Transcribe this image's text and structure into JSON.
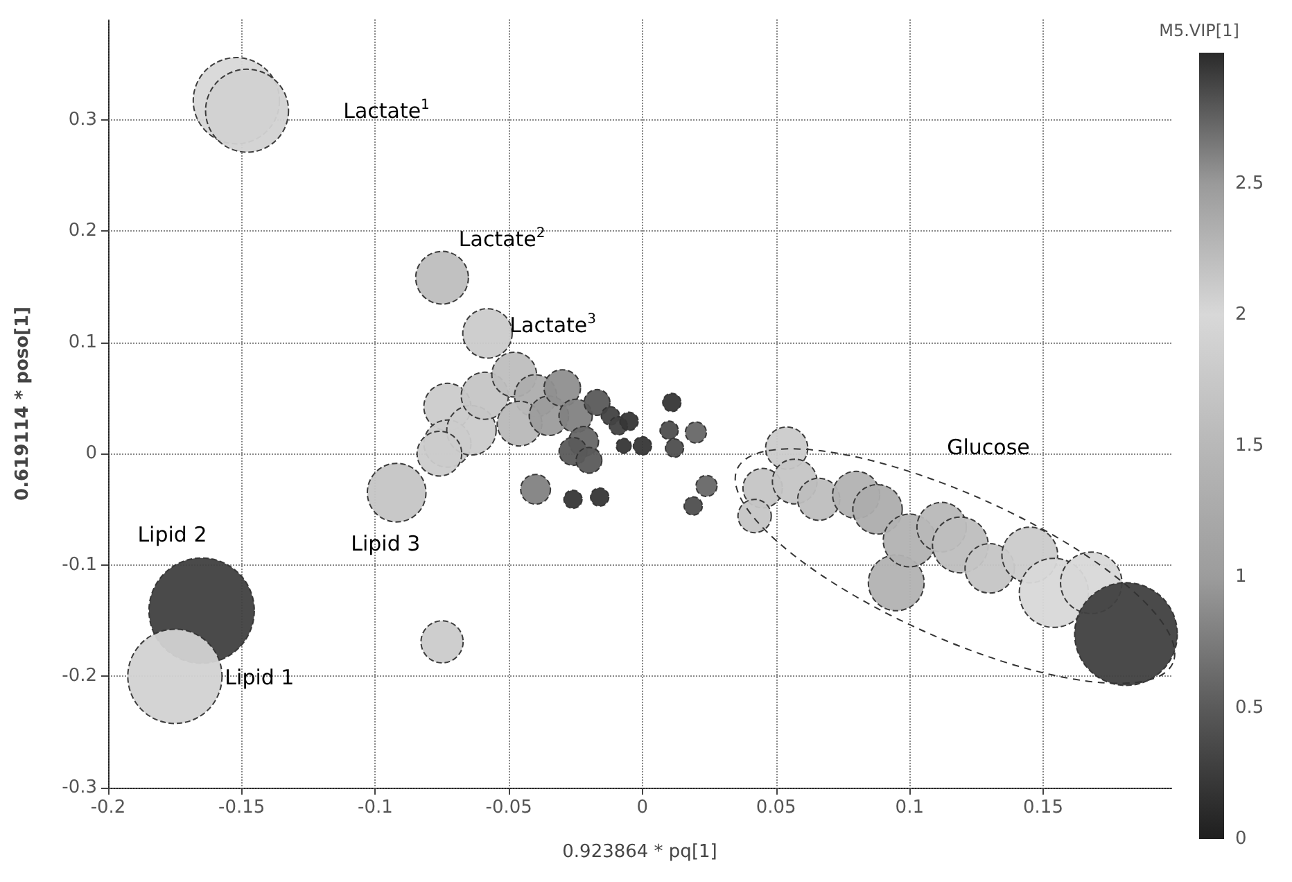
{
  "chart_data": {
    "type": "bubble",
    "xlabel": "0.923864 * pq[1]",
    "ylabel": "0.619114 * poso[1]",
    "clabel": "M5.VIP[1]",
    "xlim": [
      -0.2,
      0.198
    ],
    "xticks": [
      -0.2,
      -0.15,
      -0.1,
      -0.05,
      0,
      0.05,
      0.1,
      0.15
    ],
    "ylim": [
      -0.3,
      0.39
    ],
    "yticks": [
      -0.3,
      -0.2,
      -0.1,
      0,
      0.1,
      0.2,
      0.3
    ],
    "clim": [
      0,
      3
    ],
    "cticks": [
      0,
      0.5,
      1,
      1.5,
      2,
      2.5
    ],
    "grid": true,
    "marker": "circle",
    "x": [
      -0.152,
      -0.148,
      -0.075,
      -0.058,
      -0.092,
      -0.075,
      -0.165,
      -0.175,
      -0.073,
      -0.073,
      -0.064,
      -0.059,
      -0.048,
      -0.04,
      -0.046,
      -0.035,
      -0.03,
      -0.025,
      -0.022,
      -0.026,
      -0.017,
      -0.012,
      -0.009,
      0.011,
      -0.005,
      -0.007,
      0.0,
      0.01,
      0.02,
      0.012,
      0.024,
      0.019,
      -0.026,
      -0.016,
      -0.04,
      -0.02,
      -0.076,
      0.054,
      0.045,
      0.042,
      0.057,
      0.066,
      0.08,
      0.088,
      0.095,
      0.1,
      0.112,
      0.119,
      0.13,
      0.145,
      0.154,
      0.168,
      0.181
    ],
    "values": [
      0.317,
      0.308,
      0.158,
      0.108,
      -0.035,
      -0.169,
      -0.141,
      -0.2,
      0.042,
      0.009,
      0.021,
      0.052,
      0.071,
      0.052,
      0.027,
      0.034,
      0.059,
      0.034,
      0.011,
      0.002,
      0.046,
      0.034,
      0.025,
      0.046,
      0.029,
      0.007,
      0.007,
      0.021,
      0.019,
      0.005,
      -0.029,
      -0.047,
      -0.041,
      -0.039,
      -0.032,
      -0.006,
      0.0,
      0.005,
      -0.031,
      -0.056,
      -0.025,
      -0.041,
      -0.037,
      -0.05,
      -0.116,
      -0.078,
      -0.066,
      -0.082,
      -0.103,
      -0.091,
      -0.125,
      -0.116,
      -0.162
    ],
    "sizes": [
      0.67,
      0.62,
      0.25,
      0.22,
      0.31,
      0.16,
      1,
      0.8,
      0.2,
      0.2,
      0.22,
      0.2,
      0.18,
      0.16,
      0.18,
      0.14,
      0.12,
      0.1,
      0.08,
      0.07,
      0.06,
      0.03,
      0.03,
      0.03,
      0.03,
      0.02,
      0.03,
      0.03,
      0.04,
      0.03,
      0.04,
      0.03,
      0.03,
      0.03,
      0.08,
      0.06,
      0.18,
      0.16,
      0.14,
      0.1,
      0.18,
      0.16,
      0.2,
      0.22,
      0.28,
      0.25,
      0.22,
      0.28,
      0.22,
      0.28,
      0.43,
      0.34,
      0.95
    ],
    "cvalues": [
      2.0,
      1.9,
      1.6,
      1.8,
      1.7,
      1.8,
      2.9,
      1.9,
      1.8,
      1.8,
      1.8,
      1.7,
      1.6,
      1.3,
      1.5,
      1.0,
      0.9,
      0.8,
      0.6,
      0.5,
      0.5,
      0.3,
      0.3,
      0.2,
      0.2,
      0.2,
      0.2,
      0.4,
      0.6,
      0.4,
      0.6,
      0.4,
      0.2,
      0.2,
      0.8,
      0.5,
      1.8,
      1.8,
      1.7,
      1.7,
      1.7,
      1.6,
      1.4,
      1.3,
      1.4,
      1.4,
      1.5,
      1.6,
      1.7,
      1.8,
      2.0,
      2.0,
      2.9
    ],
    "annotations": [
      "Lactate$^{1}$",
      {
        "text": "Lactate$^{2}$",
        "x": -0.075,
        "y": 0.158
      },
      {
        "text": "Lactate$^{3}$",
        "x": -0.058,
        "y": 0.108
      },
      "Glucose",
      "Lipid 2",
      {
        "text": "Lipid 3",
        "x": -0.092,
        "y": -0.035
      },
      {
        "text": "Lipid 1",
        "x": -0.175,
        "y": -0.2
      }
    ]
  }
}
